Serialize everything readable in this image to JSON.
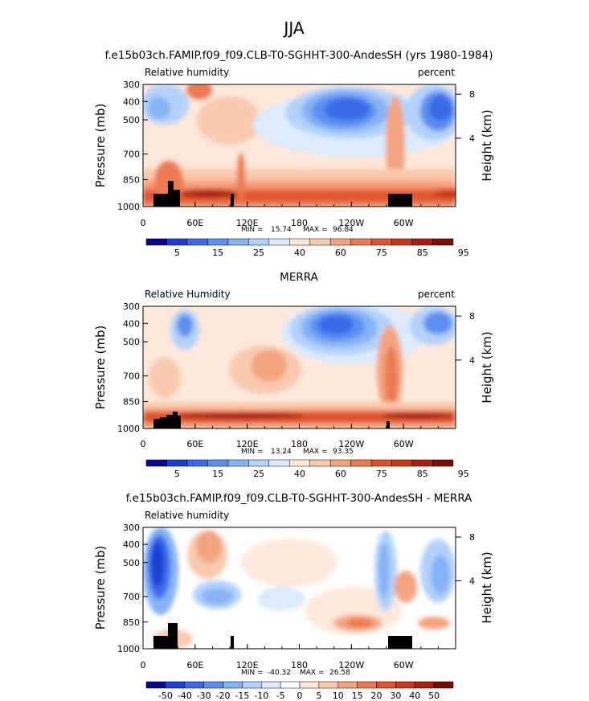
{
  "season": "JJA",
  "colors": {
    "model_scale": [
      "#08088a",
      "#1f3fd6",
      "#3a6ae8",
      "#5b8ff0",
      "#86b2f6",
      "#b3d2fa",
      "#dcebfc",
      "#fde8dc",
      "#f9c9ae",
      "#f4a37f",
      "#ec7a52",
      "#e0532f",
      "#c8371a",
      "#a8200f",
      "#7a0b06"
    ],
    "diff_scale": [
      "#08088a",
      "#1f3fd6",
      "#3a6ae8",
      "#5b8ff0",
      "#86b2f6",
      "#b3d2fa",
      "#dcebfc",
      "#ffffff",
      "#fde8dc",
      "#f9c9ae",
      "#f4a37f",
      "#ec7a52",
      "#e0532f",
      "#c8371a",
      "#a8200f",
      "#7a0b06"
    ]
  },
  "chart_data": [
    {
      "type": "heatmap",
      "id": "panel1",
      "title": "f.e15b03ch.FAMIP.f09_f09.CLB-T0-SGHHT-300-AndesSH (yrs 1980-1984)",
      "left_label": "Relative humidity",
      "right_label": "percent",
      "ylabel": "Pressure (mb)",
      "ylabel_right": "Height (km)",
      "y_ticks": [
        "300",
        "400",
        "500",
        "700",
        "850",
        "1000"
      ],
      "y_ticks_right": [
        "8",
        "4"
      ],
      "x_ticks": [
        "0",
        "60E",
        "120E",
        "180",
        "120W",
        "60W"
      ],
      "min_label": "MIN =",
      "min": "15.74",
      "max_label": "MAX =",
      "max": "96.84",
      "colorbar_ticks": [
        "5",
        "15",
        "25",
        "40",
        "60",
        "75",
        "85",
        "95"
      ]
    },
    {
      "type": "heatmap",
      "id": "panel2",
      "title": "MERRA",
      "left_label": "Relative Humidity",
      "right_label": "percent",
      "ylabel": "Pressure (mb)",
      "ylabel_right": "Height (km)",
      "y_ticks": [
        "300",
        "400",
        "500",
        "700",
        "850",
        "1000"
      ],
      "y_ticks_right": [
        "8",
        "4"
      ],
      "x_ticks": [
        "0",
        "60E",
        "120E",
        "180",
        "120W",
        "60W"
      ],
      "min_label": "MIN =",
      "min": "13.24",
      "max_label": "MAX =",
      "max": "93.35",
      "colorbar_ticks": [
        "5",
        "15",
        "25",
        "40",
        "60",
        "75",
        "85",
        "95"
      ]
    },
    {
      "type": "heatmap",
      "id": "panel3",
      "title": "f.e15b03ch.FAMIP.f09_f09.CLB-T0-SGHHT-300-AndesSH - MERRA",
      "left_label": "Relative humidity",
      "right_label": "",
      "ylabel": "Pressure (mb)",
      "ylabel_right": "Height (km)",
      "y_ticks": [
        "300",
        "400",
        "500",
        "700",
        "850",
        "1000"
      ],
      "y_ticks_right": [
        "8",
        "4"
      ],
      "x_ticks": [
        "0",
        "60E",
        "120E",
        "180",
        "120W",
        "60W"
      ],
      "min_label": "MIN =",
      "min": "-40.32",
      "max_label": "MAX =",
      "max": "26.58",
      "colorbar_ticks": [
        "-50",
        "-40",
        "-30",
        "-20",
        "-15",
        "-10",
        "-5",
        "0",
        "5",
        "10",
        "15",
        "20",
        "30",
        "40",
        "50"
      ]
    }
  ]
}
